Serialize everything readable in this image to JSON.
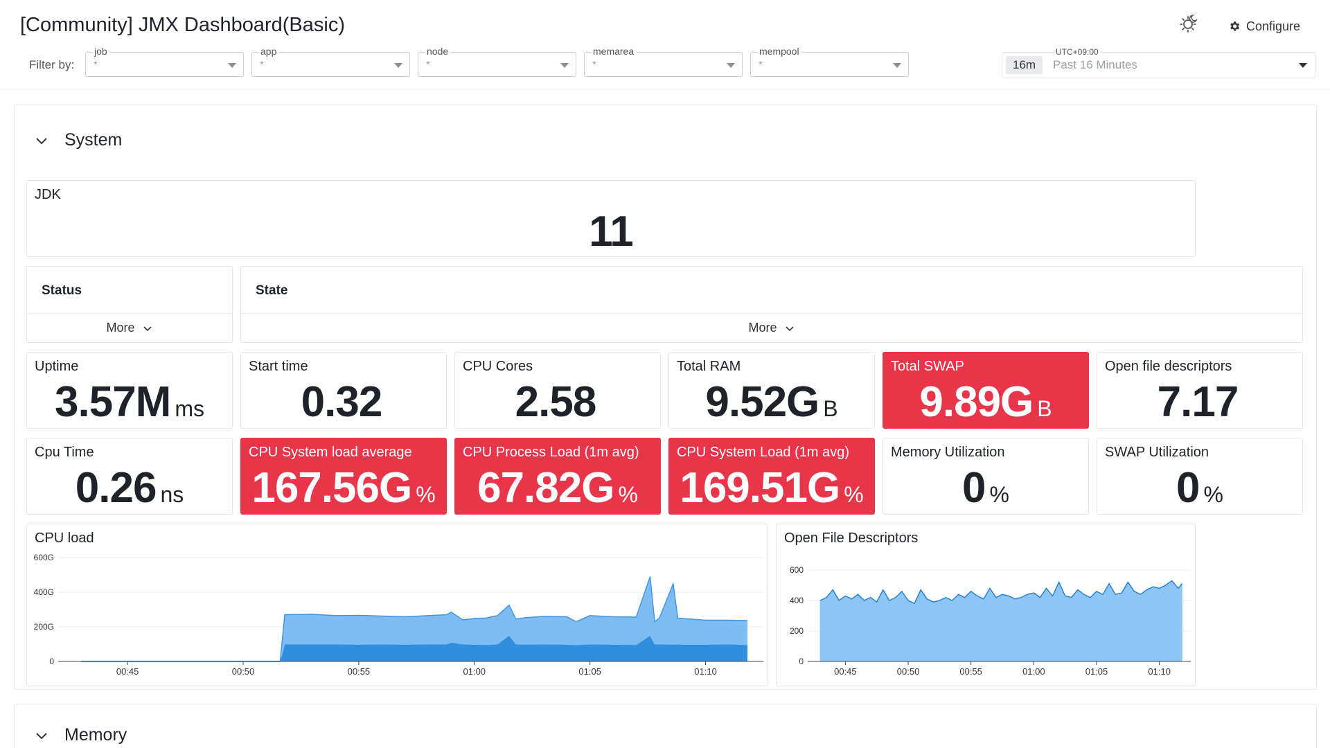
{
  "header": {
    "title": "[Community] JMX Dashboard(Basic)",
    "configure_label": "Configure",
    "filter_label": "Filter by:",
    "filters": [
      {
        "label": "job",
        "value": "*"
      },
      {
        "label": "app",
        "value": "*"
      },
      {
        "label": "node",
        "value": "*"
      },
      {
        "label": "memarea",
        "value": "*"
      },
      {
        "label": "mempool",
        "value": "*"
      }
    ],
    "time": {
      "timezone": "UTC+09:00",
      "badge": "16m",
      "range": "Past 16 Minutes"
    }
  },
  "sections": {
    "system": "System",
    "memory": "Memory"
  },
  "jdk": {
    "title": "JDK",
    "value": "11"
  },
  "status_table": {
    "header": "Status",
    "more": "More"
  },
  "state_table": {
    "header": "State",
    "more": "More"
  },
  "stats": [
    {
      "title": "Uptime",
      "value": "3.57M",
      "unit": "ms",
      "alert": false
    },
    {
      "title": "Start time",
      "value": "0.32",
      "unit": "",
      "alert": false
    },
    {
      "title": "CPU Cores",
      "value": "2.58",
      "unit": "",
      "alert": false
    },
    {
      "title": "Total RAM",
      "value": "9.52G",
      "unit": "B",
      "alert": false
    },
    {
      "title": "Total SWAP",
      "value": "9.89G",
      "unit": "B",
      "alert": true
    },
    {
      "title": "Open file descriptors",
      "value": "7.17",
      "unit": "",
      "alert": false
    },
    {
      "title": "Cpu Time",
      "value": "0.26",
      "unit": "ns",
      "alert": false
    },
    {
      "title": "CPU System load average",
      "value": "167.56G",
      "unit": "%",
      "alert": true
    },
    {
      "title": "CPU Process Load (1m avg)",
      "value": "67.82G",
      "unit": "%",
      "alert": true
    },
    {
      "title": "CPU System Load (1m avg)",
      "value": "169.51G",
      "unit": "%",
      "alert": true
    },
    {
      "title": "Memory Utilization",
      "value": "0",
      "unit": "%",
      "alert": false
    },
    {
      "title": "SWAP Utilization",
      "value": "0",
      "unit": "%",
      "alert": false
    }
  ],
  "colors": {
    "alert": "#e8354a",
    "series_light": "#7fbcf3",
    "series_dark": "#2f8ee0",
    "series_fd": "#8ec5f7"
  },
  "chart_data": [
    {
      "type": "area",
      "title": "CPU load",
      "stacked": true,
      "x_ticks": [
        "00:45",
        "00:50",
        "00:55",
        "01:00",
        "01:05",
        "01:10"
      ],
      "y_ticks": [
        "0",
        "200G",
        "400G",
        "600G"
      ],
      "ylim": [
        0,
        600
      ],
      "y_unit": "G",
      "x_minutes": [
        43,
        46,
        49,
        51.6,
        51.8,
        53,
        54,
        55,
        56,
        57,
        58,
        58.8,
        59,
        59.5,
        60,
        60.5,
        61,
        61.5,
        61.8,
        62.2,
        63,
        64,
        64.4,
        65,
        66,
        67,
        67.6,
        67.8,
        68,
        68.6,
        68.8,
        69,
        70,
        71,
        71.8
      ],
      "series": [
        {
          "name": "",
          "values": [
            0,
            0,
            0,
            0,
            100,
            100,
            100,
            98,
            100,
            98,
            100,
            100,
            110,
            100,
            98,
            96,
            100,
            150,
            100,
            98,
            100,
            98,
            95,
            100,
            98,
            96,
            150,
            100,
            100,
            98,
            100,
            98,
            98,
            100,
            96
          ]
        },
        {
          "name": "",
          "values": [
            0,
            0,
            0,
            0,
            170,
            172,
            165,
            168,
            162,
            160,
            165,
            170,
            175,
            140,
            150,
            155,
            165,
            175,
            145,
            155,
            160,
            160,
            135,
            165,
            160,
            160,
            340,
            130,
            150,
            350,
            150,
            150,
            140,
            138,
            140
          ]
        }
      ]
    },
    {
      "type": "area",
      "title": "Open File Descriptors",
      "x_ticks": [
        "00:45",
        "00:50",
        "00:55",
        "01:00",
        "01:05",
        "01:10"
      ],
      "y_ticks": [
        "0",
        "200",
        "400",
        "600"
      ],
      "ylim": [
        0,
        650
      ],
      "x_minutes": [
        43,
        43.5,
        44,
        44.5,
        45,
        45.5,
        46,
        46.5,
        47,
        47.5,
        48,
        48.5,
        49,
        49.5,
        50,
        50.5,
        51,
        51.5,
        52,
        52.5,
        53,
        53.5,
        54,
        54.5,
        55,
        55.5,
        56,
        56.5,
        57,
        57.5,
        58,
        58.5,
        59,
        59.5,
        60,
        60.5,
        61,
        61.5,
        62,
        62.5,
        63,
        63.5,
        64,
        64.5,
        65,
        65.5,
        66,
        66.5,
        67,
        67.5,
        68,
        68.5,
        69,
        69.5,
        70,
        70.5,
        71,
        71.5,
        71.8
      ],
      "series": [
        {
          "name": "",
          "values": [
            400,
            420,
            470,
            400,
            430,
            410,
            440,
            400,
            420,
            390,
            470,
            400,
            420,
            460,
            400,
            380,
            470,
            410,
            390,
            400,
            420,
            400,
            440,
            420,
            460,
            430,
            410,
            480,
            420,
            440,
            430,
            410,
            420,
            440,
            450,
            420,
            480,
            430,
            520,
            430,
            420,
            470,
            440,
            420,
            460,
            440,
            510,
            440,
            450,
            520,
            460,
            440,
            470,
            490,
            480,
            500,
            530,
            480,
            510
          ]
        }
      ]
    }
  ]
}
